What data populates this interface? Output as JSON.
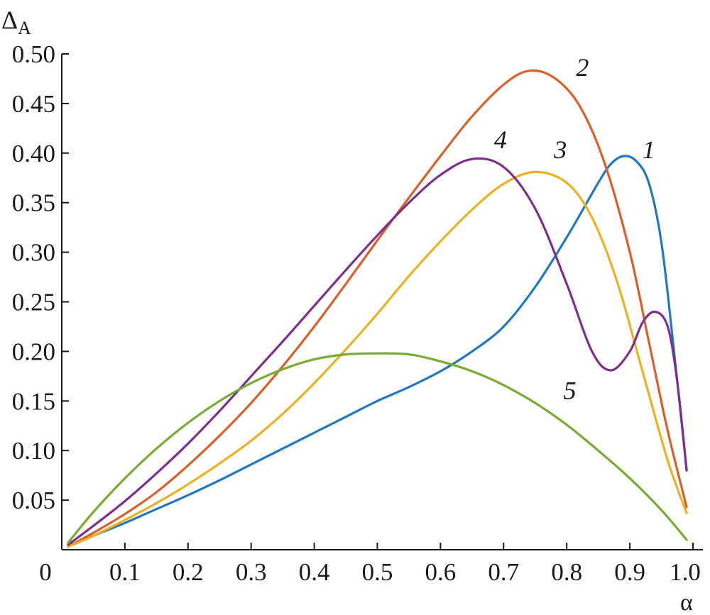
{
  "chart_data": {
    "type": "line",
    "title": "",
    "ylabel": "Δ",
    "ylabel_sub": "A",
    "xlabel": "α",
    "xlim": [
      0,
      1.0
    ],
    "ylim": [
      0,
      0.5
    ],
    "x_ticks": [
      {
        "value": 0,
        "label": "0"
      },
      {
        "value": 0.1,
        "label": "0.1"
      },
      {
        "value": 0.2,
        "label": "0.2"
      },
      {
        "value": 0.3,
        "label": "0.3"
      },
      {
        "value": 0.4,
        "label": "0.4"
      },
      {
        "value": 0.5,
        "label": "0.5"
      },
      {
        "value": 0.6,
        "label": "0.6"
      },
      {
        "value": 0.7,
        "label": "0.7"
      },
      {
        "value": 0.8,
        "label": "0.8"
      },
      {
        "value": 0.9,
        "label": "0.9"
      },
      {
        "value": 1.0,
        "label": "1.0"
      }
    ],
    "y_ticks": [
      {
        "value": 0.05,
        "label": "0.05"
      },
      {
        "value": 0.1,
        "label": "0.10"
      },
      {
        "value": 0.15,
        "label": "0.15"
      },
      {
        "value": 0.2,
        "label": "0.20"
      },
      {
        "value": 0.25,
        "label": "0.25"
      },
      {
        "value": 0.3,
        "label": "0.30"
      },
      {
        "value": 0.35,
        "label": "0.35"
      },
      {
        "value": 0.4,
        "label": "0.40"
      },
      {
        "value": 0.45,
        "label": "0.45"
      },
      {
        "value": 0.5,
        "label": "0.50"
      }
    ],
    "grid": false,
    "series": [
      {
        "label": "1",
        "color": "#2278BE",
        "label_at": [
          0.93,
          0.395
        ],
        "x": [
          0.01,
          0.05,
          0.1,
          0.15,
          0.2,
          0.25,
          0.3,
          0.35,
          0.4,
          0.45,
          0.5,
          0.55,
          0.6,
          0.65,
          0.7,
          0.75,
          0.8,
          0.85,
          0.87,
          0.89,
          0.91,
          0.93,
          0.95,
          0.97,
          0.99
        ],
        "y": [
          0.003,
          0.014,
          0.027,
          0.041,
          0.055,
          0.07,
          0.086,
          0.102,
          0.118,
          0.134,
          0.15,
          0.164,
          0.18,
          0.2,
          0.225,
          0.265,
          0.315,
          0.37,
          0.389,
          0.397,
          0.392,
          0.37,
          0.31,
          0.2,
          0.08
        ]
      },
      {
        "label": "2",
        "color": "#D95F2B",
        "label_at": [
          0.825,
          0.478
        ],
        "x": [
          0.01,
          0.05,
          0.1,
          0.15,
          0.2,
          0.25,
          0.3,
          0.35,
          0.4,
          0.45,
          0.5,
          0.55,
          0.6,
          0.65,
          0.7,
          0.74,
          0.78,
          0.82,
          0.86,
          0.9,
          0.93,
          0.96,
          0.99
        ],
        "y": [
          0.003,
          0.017,
          0.036,
          0.058,
          0.085,
          0.115,
          0.148,
          0.185,
          0.225,
          0.268,
          0.312,
          0.355,
          0.397,
          0.437,
          0.469,
          0.483,
          0.476,
          0.448,
          0.39,
          0.3,
          0.21,
          0.12,
          0.043
        ]
      },
      {
        "label": "3",
        "color": "#EDB120",
        "label_at": [
          0.79,
          0.395
        ],
        "x": [
          0.01,
          0.05,
          0.1,
          0.15,
          0.2,
          0.25,
          0.3,
          0.35,
          0.4,
          0.45,
          0.5,
          0.55,
          0.6,
          0.65,
          0.7,
          0.75,
          0.8,
          0.84,
          0.88,
          0.92,
          0.96,
          0.99
        ],
        "y": [
          0.003,
          0.014,
          0.03,
          0.047,
          0.066,
          0.087,
          0.11,
          0.137,
          0.168,
          0.202,
          0.238,
          0.276,
          0.311,
          0.343,
          0.369,
          0.381,
          0.37,
          0.335,
          0.27,
          0.18,
          0.09,
          0.037
        ]
      },
      {
        "label": "4",
        "color": "#7E2F8E",
        "label_at": [
          0.695,
          0.405
        ],
        "x": [
          0.01,
          0.05,
          0.1,
          0.15,
          0.2,
          0.25,
          0.3,
          0.35,
          0.4,
          0.45,
          0.5,
          0.55,
          0.6,
          0.65,
          0.7,
          0.75,
          0.8,
          0.84,
          0.87,
          0.9,
          0.92,
          0.94,
          0.96,
          0.975,
          0.99
        ],
        "y": [
          0.005,
          0.024,
          0.049,
          0.077,
          0.107,
          0.14,
          0.175,
          0.21,
          0.246,
          0.282,
          0.317,
          0.35,
          0.378,
          0.394,
          0.386,
          0.344,
          0.268,
          0.2,
          0.181,
          0.2,
          0.229,
          0.24,
          0.225,
          0.17,
          0.08
        ]
      },
      {
        "label": "5",
        "color": "#77AC30",
        "label_at": [
          0.805,
          0.152
        ],
        "x": [
          0.01,
          0.05,
          0.1,
          0.15,
          0.2,
          0.25,
          0.3,
          0.35,
          0.4,
          0.45,
          0.5,
          0.55,
          0.6,
          0.65,
          0.7,
          0.75,
          0.8,
          0.85,
          0.9,
          0.95,
          0.99
        ],
        "y": [
          0.007,
          0.038,
          0.072,
          0.102,
          0.128,
          0.15,
          0.168,
          0.182,
          0.192,
          0.197,
          0.198,
          0.197,
          0.19,
          0.18,
          0.166,
          0.148,
          0.126,
          0.1,
          0.072,
          0.04,
          0.01
        ]
      }
    ]
  }
}
